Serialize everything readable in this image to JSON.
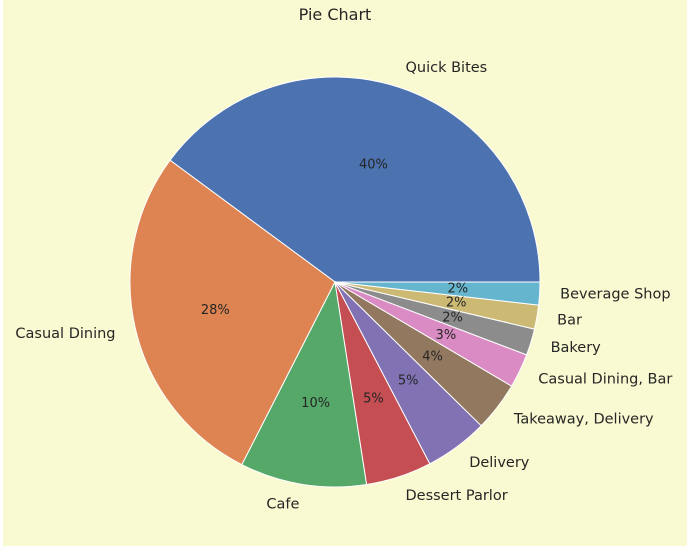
{
  "chart_data": {
    "type": "pie",
    "title": "Pie Chart",
    "slices": [
      {
        "label": "Quick Bites",
        "value": 40.0,
        "pct_text": "40%",
        "color": "#4c72b0"
      },
      {
        "label": "Casual Dining",
        "value": 27.7,
        "pct_text": "28%",
        "color": "#dd8452"
      },
      {
        "label": "Cafe",
        "value": 10.0,
        "pct_text": "10%",
        "color": "#55a868"
      },
      {
        "label": "Dessert Parlor",
        "value": 5.2,
        "pct_text": "5%",
        "color": "#c44e52"
      },
      {
        "label": "Delivery",
        "value": 5.0,
        "pct_text": "5%",
        "color": "#8172b3"
      },
      {
        "label": "Takeaway, Delivery",
        "value": 3.9,
        "pct_text": "4%",
        "color": "#937860"
      },
      {
        "label": "Casual Dining, Bar",
        "value": 2.7,
        "pct_text": "3%",
        "color": "#da8bc3"
      },
      {
        "label": "Bakery",
        "value": 2.1,
        "pct_text": "2%",
        "color": "#8c8c8c"
      },
      {
        "label": "Bar",
        "value": 1.9,
        "pct_text": "2%",
        "color": "#ccb974"
      },
      {
        "label": "Beverage Shop",
        "value": 1.8,
        "pct_text": "2%",
        "color": "#64b5cd"
      }
    ],
    "background": "#fafad2",
    "start_angle": "0 degrees (3 o'clock)",
    "direction": "counterclockwise",
    "legend": "none"
  }
}
